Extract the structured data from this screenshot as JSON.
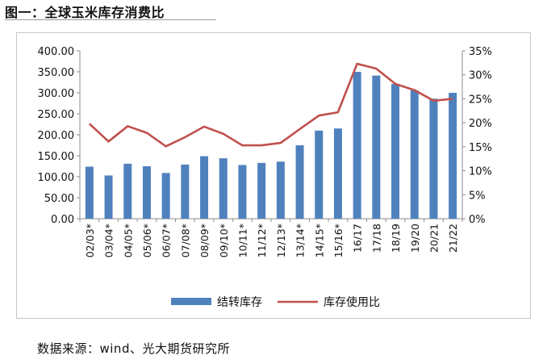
{
  "header": {
    "title": "图一：全球玉米库存消费比"
  },
  "footer": {
    "source": "数据来源：wind、光大期货研究所"
  },
  "chart_data": {
    "type": "bar",
    "title": "图一：全球玉米库存消费比",
    "categories": [
      "02/03*",
      "03/04*",
      "04/05*",
      "05/06*",
      "06/07*",
      "07/08*",
      "08/09*",
      "09/10*",
      "10/11*",
      "11/12*",
      "12/13*",
      "13/14*",
      "14/15*",
      "15/16*",
      "16/17",
      "17/18",
      "18/19",
      "19/20",
      "20/21",
      "21/22"
    ],
    "series": [
      {
        "name": "结转库存",
        "type": "bar",
        "axis": "left",
        "color": "#4f81bd",
        "values": [
          124,
          103,
          131,
          125,
          109,
          129,
          149,
          144,
          128,
          133,
          136,
          175,
          210,
          215,
          350,
          341,
          321,
          306,
          286,
          300
        ]
      },
      {
        "name": "库存使用比",
        "type": "line",
        "axis": "right",
        "color": "#c0504d",
        "values": [
          19.8,
          16.1,
          19.3,
          17.9,
          15.1,
          17.0,
          19.2,
          17.7,
          15.3,
          15.3,
          15.8,
          18.7,
          21.5,
          22.2,
          32.3,
          31.3,
          28.1,
          26.8,
          24.6,
          25.0
        ]
      }
    ],
    "y_left": {
      "ylim": [
        0,
        400
      ],
      "ticks": [
        "0.00",
        "50.00",
        "100.00",
        "150.00",
        "200.00",
        "250.00",
        "300.00",
        "350.00",
        "400.00"
      ]
    },
    "y_right": {
      "ylim": [
        0,
        35
      ],
      "ticks": [
        "0%",
        "5%",
        "10%",
        "15%",
        "20%",
        "25%",
        "30%",
        "35%"
      ]
    },
    "grid": false,
    "legend": "bottom-center"
  }
}
